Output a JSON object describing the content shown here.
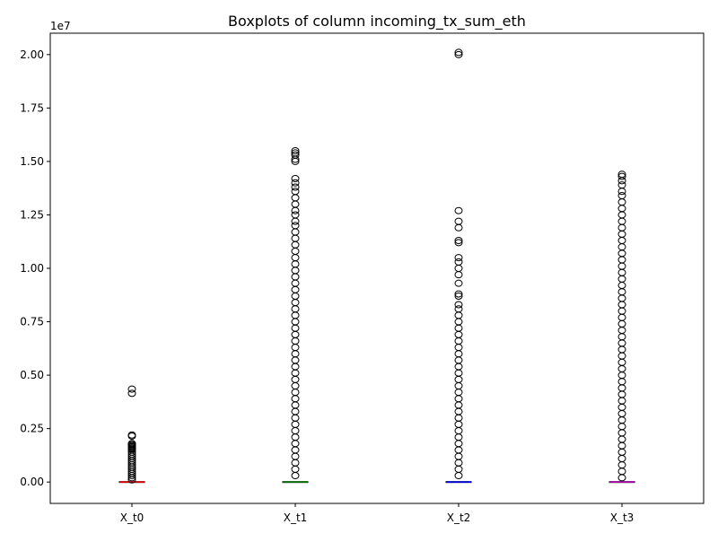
{
  "chart_data": {
    "type": "boxplot",
    "title": "Boxplots of column incoming_tx_sum_eth",
    "xlabel": "",
    "ylabel": "",
    "scale_label": "1e7",
    "ylim": [
      -1000000,
      21000000
    ],
    "y_ticks": [
      0,
      2500000,
      5000000,
      7500000,
      10000000,
      12500000,
      15000000,
      17500000,
      20000000
    ],
    "y_tick_labels": [
      "0.00",
      "0.25",
      "0.50",
      "0.75",
      "1.00",
      "1.25",
      "1.50",
      "1.75",
      "2.00"
    ],
    "grid": false,
    "categories": [
      "X_t0",
      "X_t1",
      "X_t2",
      "X_t3"
    ],
    "series": [
      {
        "category": "X_t0",
        "median_color": "#ff0000",
        "stats": {
          "q1": 0,
          "median": 0,
          "q3": 0,
          "whisker_low": 0,
          "whisker_high": 0
        },
        "outliers": [
          4350000,
          4150000,
          2200000,
          2150000,
          1800000,
          1750000,
          1700000,
          1650000,
          1600000,
          1550000,
          1500000,
          1400000,
          1300000,
          1200000,
          1100000,
          1000000,
          900000,
          800000,
          700000,
          600000,
          500000,
          400000,
          300000,
          200000,
          100000
        ]
      },
      {
        "category": "X_t1",
        "median_color": "#008000",
        "stats": {
          "q1": 0,
          "median": 0,
          "q3": 0,
          "whisker_low": 0,
          "whisker_high": 0
        },
        "outliers": [
          15500000,
          15400000,
          15300000,
          15100000,
          15000000,
          14200000,
          14000000,
          13800000,
          13600000,
          13300000,
          13000000,
          12700000,
          12500000,
          12200000,
          12000000,
          11700000,
          11400000,
          11100000,
          10800000,
          10500000,
          10200000,
          9900000,
          9600000,
          9300000,
          9000000,
          8700000,
          8400000,
          8100000,
          7800000,
          7500000,
          7200000,
          6900000,
          6600000,
          6300000,
          6000000,
          5700000,
          5400000,
          5100000,
          4800000,
          4500000,
          4200000,
          3900000,
          3600000,
          3300000,
          3000000,
          2700000,
          2400000,
          2100000,
          1800000,
          1500000,
          1200000,
          900000,
          600000,
          300000
        ]
      },
      {
        "category": "X_t2",
        "median_color": "#0000ff",
        "stats": {
          "q1": 0,
          "median": 0,
          "q3": 0,
          "whisker_low": 0,
          "whisker_high": 0
        },
        "outliers": [
          20100000,
          20000000,
          12700000,
          12200000,
          11900000,
          11300000,
          11200000,
          10500000,
          10300000,
          10000000,
          9700000,
          9300000,
          8800000,
          8700000,
          8300000,
          8100000,
          7800000,
          7500000,
          7200000,
          6900000,
          6600000,
          6300000,
          6000000,
          5700000,
          5400000,
          5100000,
          4800000,
          4500000,
          4200000,
          3900000,
          3600000,
          3300000,
          3000000,
          2700000,
          2400000,
          2100000,
          1800000,
          1500000,
          1200000,
          900000,
          600000,
          300000
        ]
      },
      {
        "category": "X_t3",
        "median_color": "#bf00bf",
        "stats": {
          "q1": 0,
          "median": 0,
          "q3": 0,
          "whisker_low": 0,
          "whisker_high": 0
        },
        "outliers": [
          14400000,
          14300000,
          14100000,
          13900000,
          13600000,
          13400000,
          13100000,
          12800000,
          12500000,
          12200000,
          11900000,
          11600000,
          11300000,
          11000000,
          10700000,
          10400000,
          10100000,
          9800000,
          9500000,
          9200000,
          8900000,
          8600000,
          8300000,
          8000000,
          7700000,
          7400000,
          7100000,
          6800000,
          6500000,
          6200000,
          5900000,
          5600000,
          5300000,
          5000000,
          4700000,
          4400000,
          4100000,
          3800000,
          3500000,
          3200000,
          2900000,
          2600000,
          2300000,
          2000000,
          1700000,
          1400000,
          1100000,
          800000,
          500000,
          200000
        ]
      }
    ]
  }
}
